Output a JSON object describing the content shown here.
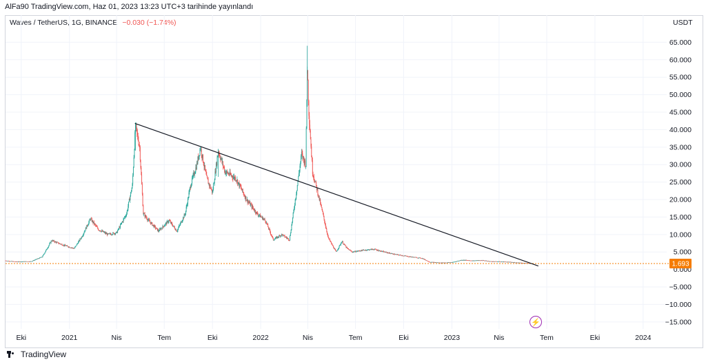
{
  "header": {
    "title": "AlFa90 TradingView.com, Haz 01, 2023 13:23 UTC+3 tarihinde yayınlandı"
  },
  "legend": {
    "symbol": "Waves / TetherUS, 1G, BINANCE",
    "change": "−0.030 (−1.74%)"
  },
  "footer": {
    "brand": "TradingView"
  },
  "chart_data": {
    "type": "candlestick",
    "title": "Waves / TetherUS, 1G, BINANCE",
    "ylabel": "USDT",
    "ylim": [
      -17,
      70
    ],
    "y_ticks": [
      "65.000",
      "60.000",
      "55.000",
      "50.000",
      "45.000",
      "40.000",
      "35.000",
      "30.000",
      "25.000",
      "20.000",
      "15.000",
      "10.000",
      "5.000",
      "0.000",
      "−5.000",
      "−10.000",
      "−15.000"
    ],
    "y_tick_values": [
      65,
      60,
      55,
      50,
      45,
      40,
      35,
      30,
      25,
      20,
      15,
      10,
      5,
      0,
      -5,
      -10,
      -15
    ],
    "x_ticks": [
      "Eki",
      "2021",
      "Nis",
      "Tem",
      "Eki",
      "2022",
      "Nis",
      "Tem",
      "Eki",
      "2023",
      "Nis",
      "Tem",
      "Eki",
      "2024"
    ],
    "x_tick_dates": [
      "2020-10-01",
      "2021-01-01",
      "2021-04-01",
      "2021-07-01",
      "2021-10-01",
      "2022-01-01",
      "2022-04-01",
      "2022-07-01",
      "2022-10-01",
      "2023-01-01",
      "2023-04-01",
      "2023-07-01",
      "2023-10-01",
      "2024-01-01"
    ],
    "last_price": {
      "label": "1.693",
      "value": 1.693
    },
    "colors": {
      "up": "#26a69a",
      "down": "#ef5350",
      "last_price": "#f57c00",
      "trendline": "#131722"
    },
    "price_path": [
      [
        "2020-09-01",
        2.5
      ],
      [
        "2020-09-20",
        2.2
      ],
      [
        "2020-10-20",
        2.3
      ],
      [
        "2020-11-10",
        3.6
      ],
      [
        "2020-11-28",
        8.3
      ],
      [
        "2020-12-20",
        7.0
      ],
      [
        "2021-01-10",
        6.0
      ],
      [
        "2021-01-25",
        9.5
      ],
      [
        "2021-02-10",
        14.5
      ],
      [
        "2021-02-25",
        11.5
      ],
      [
        "2021-03-15",
        10.0
      ],
      [
        "2021-04-01",
        10.5
      ],
      [
        "2021-04-20",
        16.0
      ],
      [
        "2021-05-01",
        24.0
      ],
      [
        "2021-05-07",
        41.0
      ],
      [
        "2021-05-15",
        35.0
      ],
      [
        "2021-05-22",
        16.0
      ],
      [
        "2021-06-01",
        14.0
      ],
      [
        "2021-06-20",
        11.0
      ],
      [
        "2021-07-10",
        14.0
      ],
      [
        "2021-07-25",
        11.0
      ],
      [
        "2021-08-10",
        16.0
      ],
      [
        "2021-08-20",
        24.0
      ],
      [
        "2021-09-01",
        30.0
      ],
      [
        "2021-09-08",
        35.0
      ],
      [
        "2021-09-20",
        26.0
      ],
      [
        "2021-10-01",
        22.0
      ],
      [
        "2021-10-12",
        34.0
      ],
      [
        "2021-10-25",
        28.0
      ],
      [
        "2021-11-15",
        26.0
      ],
      [
        "2021-12-05",
        20.0
      ],
      [
        "2021-12-25",
        16.0
      ],
      [
        "2022-01-10",
        14.0
      ],
      [
        "2022-01-25",
        8.5
      ],
      [
        "2022-02-10",
        10.0
      ],
      [
        "2022-02-25",
        8.5
      ],
      [
        "2022-03-10",
        22.0
      ],
      [
        "2022-03-20",
        33.0
      ],
      [
        "2022-03-28",
        30.0
      ],
      [
        "2022-03-31",
        58.0
      ],
      [
        "2022-04-03",
        45.0
      ],
      [
        "2022-04-10",
        28.0
      ],
      [
        "2022-04-20",
        22.0
      ],
      [
        "2022-05-01",
        15.0
      ],
      [
        "2022-05-10",
        9.0
      ],
      [
        "2022-05-25",
        5.0
      ],
      [
        "2022-06-05",
        8.0
      ],
      [
        "2022-06-15",
        6.0
      ],
      [
        "2022-06-25",
        5.0
      ],
      [
        "2022-07-15",
        5.5
      ],
      [
        "2022-08-05",
        5.8
      ],
      [
        "2022-08-25",
        5.0
      ],
      [
        "2022-09-15",
        4.3
      ],
      [
        "2022-10-15",
        3.6
      ],
      [
        "2022-11-05",
        3.2
      ],
      [
        "2022-11-20",
        2.1
      ],
      [
        "2022-12-10",
        1.9
      ],
      [
        "2023-01-01",
        2.0
      ],
      [
        "2023-01-20",
        2.7
      ],
      [
        "2023-02-10",
        2.5
      ],
      [
        "2023-03-01",
        2.6
      ],
      [
        "2023-03-15",
        2.3
      ],
      [
        "2023-04-10",
        2.2
      ],
      [
        "2023-05-01",
        2.0
      ],
      [
        "2023-05-20",
        1.8
      ],
      [
        "2023-06-01",
        1.693
      ]
    ],
    "trendline": {
      "start": [
        "2021-05-06",
        41.8
      ],
      "end": [
        "2023-06-15",
        1.0
      ]
    },
    "grid": true
  }
}
